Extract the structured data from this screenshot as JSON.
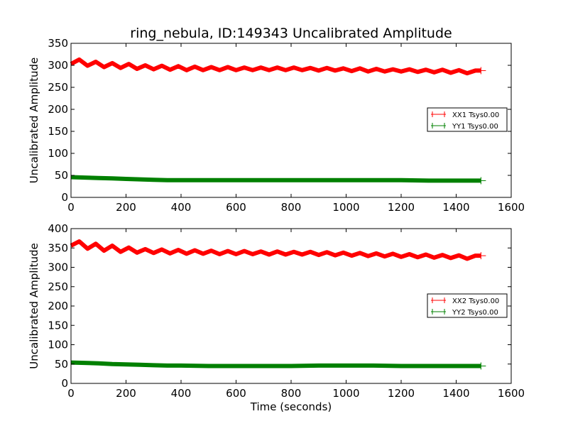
{
  "figure": {
    "title": "ring_nebula, ID:149343 Uncalibrated Amplitude",
    "background": "#ffffff"
  },
  "chart_data": [
    {
      "type": "line",
      "title": "ring_nebula, ID:149343 Uncalibrated Amplitude",
      "xlabel": "",
      "ylabel": "Uncalibrated Amplitude",
      "xlim": [
        0,
        1600
      ],
      "ylim": [
        0,
        350
      ],
      "xticks": [
        "0",
        "200",
        "400",
        "600",
        "800",
        "1000",
        "1200",
        "1400",
        "1600"
      ],
      "yticks": [
        "0",
        "50",
        "100",
        "150",
        "200",
        "250",
        "300",
        "350"
      ],
      "grid": false,
      "legend_position": "center-right",
      "series": [
        {
          "name": "XX1 Tsys0.00",
          "color": "#ff0000",
          "x": [
            0,
            30,
            60,
            90,
            120,
            150,
            180,
            210,
            240,
            270,
            300,
            330,
            360,
            390,
            420,
            450,
            480,
            510,
            540,
            570,
            600,
            630,
            660,
            690,
            720,
            750,
            780,
            810,
            840,
            870,
            900,
            930,
            960,
            990,
            1020,
            1050,
            1080,
            1110,
            1140,
            1170,
            1200,
            1230,
            1260,
            1290,
            1320,
            1350,
            1380,
            1410,
            1440,
            1470,
            1490
          ],
          "y": [
            303,
            313,
            299,
            308,
            296,
            305,
            294,
            303,
            292,
            300,
            291,
            299,
            290,
            298,
            289,
            297,
            289,
            296,
            289,
            296,
            289,
            295,
            289,
            295,
            289,
            295,
            289,
            295,
            289,
            294,
            288,
            294,
            288,
            293,
            287,
            293,
            286,
            292,
            286,
            291,
            286,
            291,
            285,
            290,
            284,
            290,
            283,
            289,
            282,
            288,
            288
          ]
        },
        {
          "name": "YY1 Tsys0.00",
          "color": "#008000",
          "x": [
            0,
            50,
            100,
            150,
            200,
            250,
            300,
            350,
            400,
            500,
            600,
            700,
            800,
            900,
            1000,
            1100,
            1200,
            1300,
            1400,
            1490
          ],
          "y": [
            46,
            45,
            44,
            43,
            42,
            41,
            40,
            39,
            39,
            39,
            39,
            39,
            39,
            39,
            39,
            39,
            39,
            38,
            38,
            38
          ]
        }
      ]
    },
    {
      "type": "line",
      "title": "",
      "xlabel": "Time (seconds)",
      "ylabel": "Uncalibrated Amplitude",
      "xlim": [
        0,
        1600
      ],
      "ylim": [
        0,
        400
      ],
      "xticks": [
        "0",
        "200",
        "400",
        "600",
        "800",
        "1000",
        "1200",
        "1400",
        "1600"
      ],
      "yticks": [
        "0",
        "50",
        "100",
        "150",
        "200",
        "250",
        "300",
        "350",
        "400"
      ],
      "grid": false,
      "legend_position": "center-right",
      "series": [
        {
          "name": "XX2 Tsys0.00",
          "color": "#ff0000",
          "x": [
            0,
            30,
            60,
            90,
            120,
            150,
            180,
            210,
            240,
            270,
            300,
            330,
            360,
            390,
            420,
            450,
            480,
            510,
            540,
            570,
            600,
            630,
            660,
            690,
            720,
            750,
            780,
            810,
            840,
            870,
            900,
            930,
            960,
            990,
            1020,
            1050,
            1080,
            1110,
            1140,
            1170,
            1200,
            1230,
            1260,
            1290,
            1320,
            1350,
            1380,
            1410,
            1440,
            1470,
            1490
          ],
          "y": [
            356,
            367,
            348,
            361,
            343,
            356,
            340,
            351,
            338,
            347,
            337,
            346,
            336,
            345,
            335,
            344,
            335,
            343,
            334,
            342,
            334,
            342,
            334,
            341,
            333,
            341,
            333,
            340,
            333,
            340,
            332,
            339,
            331,
            338,
            330,
            337,
            329,
            336,
            328,
            335,
            327,
            334,
            326,
            333,
            325,
            332,
            324,
            331,
            322,
            330,
            330
          ]
        },
        {
          "name": "YY2 Tsys0.00",
          "color": "#008000",
          "x": [
            0,
            50,
            100,
            150,
            200,
            250,
            300,
            350,
            400,
            500,
            600,
            700,
            800,
            900,
            1000,
            1100,
            1200,
            1300,
            1400,
            1490
          ],
          "y": [
            54,
            53,
            52,
            50,
            49,
            48,
            47,
            46,
            46,
            45,
            45,
            45,
            45,
            46,
            46,
            46,
            45,
            45,
            45,
            45
          ]
        }
      ]
    }
  ]
}
